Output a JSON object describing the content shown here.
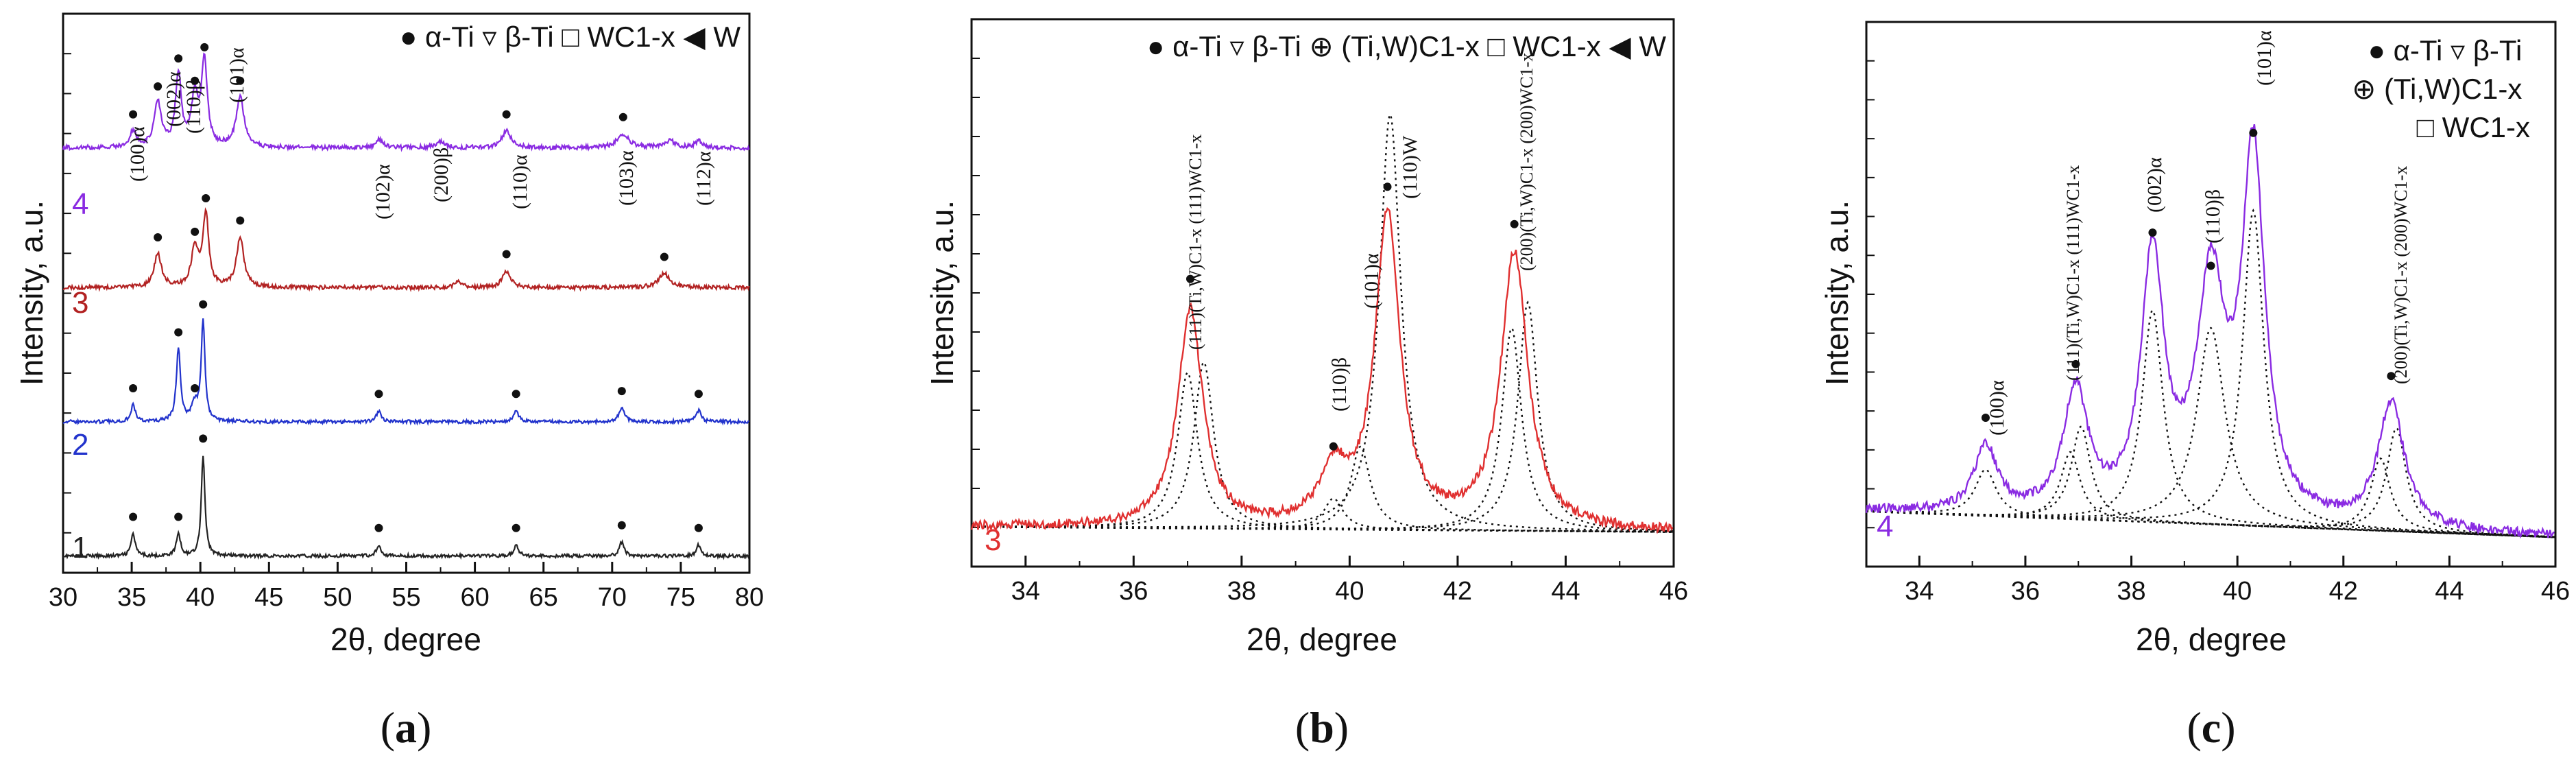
{
  "chart_data": [
    {
      "id": "a",
      "type": "line",
      "panel_label": "(a)",
      "panel_label_parts": [
        "(",
        "a",
        ")"
      ],
      "xlabel": "2θ, degree",
      "ylabel": "Intensity, a.u.",
      "xlim": [
        30,
        80
      ],
      "ylim": [
        0,
        100
      ],
      "x_ticks": [
        30,
        35,
        40,
        45,
        50,
        55,
        60,
        65,
        70,
        75,
        80
      ],
      "legend": "● α-Ti ▿ β-Ti □ WC1-x ◀ W",
      "legend_position": "top-right",
      "series": [
        {
          "name": "1",
          "color": "#222222",
          "baseline": 3,
          "noise": 0.6,
          "peaks": [
            [
              35.1,
              4,
              0.18
            ],
            [
              38.4,
              4,
              0.18
            ],
            [
              40.2,
              18,
              0.16
            ],
            [
              53.0,
              2,
              0.2
            ],
            [
              63.0,
              2,
              0.2
            ],
            [
              70.7,
              2.5,
              0.2
            ],
            [
              76.3,
              2,
              0.2
            ]
          ]
        },
        {
          "name": "2",
          "color": "#2233cc",
          "baseline": 27,
          "noise": 0.6,
          "peaks": [
            [
              35.1,
              3,
              0.2
            ],
            [
              38.4,
              13,
              0.18
            ],
            [
              39.6,
              3,
              0.3
            ],
            [
              40.2,
              18,
              0.16
            ],
            [
              53.0,
              2,
              0.22
            ],
            [
              63.0,
              2,
              0.22
            ],
            [
              70.7,
              2.5,
              0.25
            ],
            [
              76.3,
              2,
              0.22
            ]
          ]
        },
        {
          "name": "3",
          "color": "#b22222",
          "baseline": 51,
          "noise": 0.7,
          "peaks": [
            [
              36.9,
              6,
              0.32
            ],
            [
              39.6,
              7,
              0.3
            ],
            [
              40.4,
              13,
              0.25
            ],
            [
              42.9,
              9,
              0.32
            ],
            [
              58.8,
              1.2,
              0.3
            ],
            [
              62.3,
              3,
              0.35
            ],
            [
              73.8,
              2.5,
              0.5
            ]
          ]
        },
        {
          "name": "4",
          "color": "#8a2be2",
          "baseline": 76,
          "noise": 0.8,
          "peaks": [
            [
              35.1,
              3,
              0.25
            ],
            [
              36.9,
              8,
              0.32
            ],
            [
              38.4,
              13,
              0.25
            ],
            [
              39.6,
              9,
              0.3
            ],
            [
              40.3,
              15,
              0.25
            ],
            [
              42.9,
              9,
              0.34
            ],
            [
              53.0,
              1.5,
              0.3
            ],
            [
              57.5,
              1.0,
              0.4
            ],
            [
              62.3,
              3,
              0.4
            ],
            [
              70.8,
              2.5,
              0.5
            ],
            [
              74.2,
              1.2,
              0.5
            ],
            [
              76.3,
              1.2,
              0.3
            ]
          ]
        }
      ],
      "annotations": [
        {
          "x": 35.2,
          "text": "(100)α"
        },
        {
          "x": 38.4,
          "text": "(002)α"
        },
        {
          "x": 39.6,
          "text": "(110)β",
          "color": "#cc2222"
        },
        {
          "x": 40.8,
          "text": "(101)α"
        },
        {
          "x": 53.0,
          "text": "(102)α"
        },
        {
          "x": 57.5,
          "text": "(200)β",
          "color": "#cc2222"
        },
        {
          "x": 63.0,
          "text": "(110)α"
        },
        {
          "x": 70.9,
          "text": "(103)α"
        },
        {
          "x": 76.3,
          "text": "(112)α"
        }
      ]
    },
    {
      "id": "b",
      "type": "line",
      "panel_label": "(b)",
      "panel_label_parts": [
        "(",
        "b",
        ")"
      ],
      "xlabel": "2θ, degree",
      "ylabel": "Intensity, a.u.",
      "xlim": [
        33,
        46
      ],
      "ylim": [
        0,
        100
      ],
      "x_ticks": [
        34,
        36,
        38,
        40,
        42,
        44,
        46
      ],
      "legend": "● α-Ti ▿ β-Ti ⊕ (Ti,W)C1-x □ WC1-x ◀ W",
      "legend_position": "top",
      "series": [
        {
          "name": "3",
          "color": "#e03030",
          "baseline_start": 5,
          "baseline_end": 4,
          "noise": 0.9,
          "peaks": [
            [
              37.05,
              42,
              0.28
            ],
            [
              39.7,
              10,
              0.3
            ],
            [
              40.7,
              60,
              0.28
            ],
            [
              43.05,
              53,
              0.3
            ]
          ]
        }
      ],
      "fit_components": [
        [
          37.0,
          30,
          0.22
        ],
        [
          37.3,
          32,
          0.22
        ],
        [
          39.7,
          6,
          0.22
        ],
        [
          40.2,
          16,
          0.22
        ],
        [
          40.75,
          80,
          0.24
        ],
        [
          43.0,
          39,
          0.22
        ],
        [
          43.3,
          44,
          0.22
        ]
      ],
      "annotations": [
        {
          "x": 37.1,
          "text": "(111)(Ti,W)C1-x (111)WC1-x"
        },
        {
          "x": 39.7,
          "text": "(110)β",
          "color": "#cc2222"
        },
        {
          "x": 40.2,
          "text": "(101)α"
        },
        {
          "x": 40.75,
          "text": "(110)W"
        },
        {
          "x": 43.1,
          "text": "(200)(Ti,W)C1-x (200)WC1-x"
        }
      ]
    },
    {
      "id": "c",
      "type": "line",
      "panel_label": "(c)",
      "panel_label_parts": [
        "(",
        "c",
        ")"
      ],
      "xlabel": "2θ, degree",
      "ylabel": "Intensity, a.u.",
      "xlim": [
        33,
        46
      ],
      "ylim": [
        0,
        100
      ],
      "x_ticks": [
        34,
        36,
        38,
        40,
        42,
        44,
        46
      ],
      "legend": "● α-Ti ▿ β-Ti ⊕ (Ti,W)C1-x □ WC1-x",
      "legend_position": "top-right",
      "series": [
        {
          "name": "4",
          "color": "#8a2be2",
          "baseline_start": 8,
          "baseline_end": 3,
          "noise": 0.9,
          "peaks": [
            [
              35.25,
              13,
              0.26
            ],
            [
              36.95,
              24,
              0.28
            ],
            [
              38.4,
              50,
              0.26
            ],
            [
              39.5,
              44,
              0.32
            ],
            [
              40.3,
              70,
              0.26
            ],
            [
              42.9,
              24,
              0.3
            ]
          ]
        }
      ],
      "fit_components": [
        [
          35.25,
          9,
          0.24
        ],
        [
          36.85,
          13,
          0.22
        ],
        [
          37.05,
          18,
          0.22
        ],
        [
          38.4,
          41,
          0.24
        ],
        [
          39.5,
          38,
          0.32
        ],
        [
          40.3,
          61,
          0.24
        ],
        [
          42.7,
          14,
          0.22
        ],
        [
          43.0,
          20,
          0.22
        ]
      ],
      "annotations": [
        {
          "x": 35.25,
          "text": "(100)α"
        },
        {
          "x": 37.0,
          "text": "(111)(Ti,W)C1-x (111)WC1-x"
        },
        {
          "x": 38.4,
          "text": "(002)α"
        },
        {
          "x": 39.5,
          "text": "(110)β",
          "color": "#cc2222"
        },
        {
          "x": 40.3,
          "text": "(101)α"
        },
        {
          "x": 42.9,
          "text": "(200)(Ti,W)C1-x (200)WC1-x"
        }
      ]
    }
  ]
}
